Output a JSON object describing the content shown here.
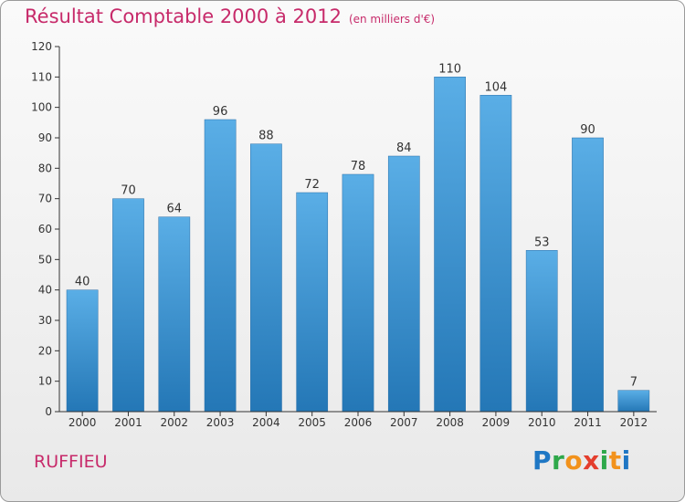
{
  "chart_data": {
    "type": "bar",
    "title": "Résultat Comptable 2000 à 2012",
    "subtitle": "(en milliers d'€)",
    "categories": [
      "2000",
      "2001",
      "2002",
      "2003",
      "2004",
      "2005",
      "2006",
      "2007",
      "2008",
      "2009",
      "2010",
      "2011",
      "2012"
    ],
    "values": [
      40,
      70,
      64,
      96,
      88,
      72,
      78,
      84,
      110,
      104,
      53,
      90,
      7
    ],
    "ylim": [
      0,
      120
    ],
    "yticks": [
      0,
      10,
      20,
      30,
      40,
      50,
      60,
      70,
      80,
      90,
      100,
      110,
      120
    ],
    "xlabel": "",
    "ylabel": "",
    "grid": false,
    "bar_color_top": "#5aaee6",
    "bar_color_bottom": "#2477b6"
  },
  "commune": "RUFFIEU",
  "logo": {
    "text": "Proxiti",
    "letters": [
      "P",
      "r",
      "o",
      "x",
      "i",
      "t",
      "i"
    ]
  },
  "colors": {
    "accent": "#c72a6a",
    "axis": "#333333"
  }
}
